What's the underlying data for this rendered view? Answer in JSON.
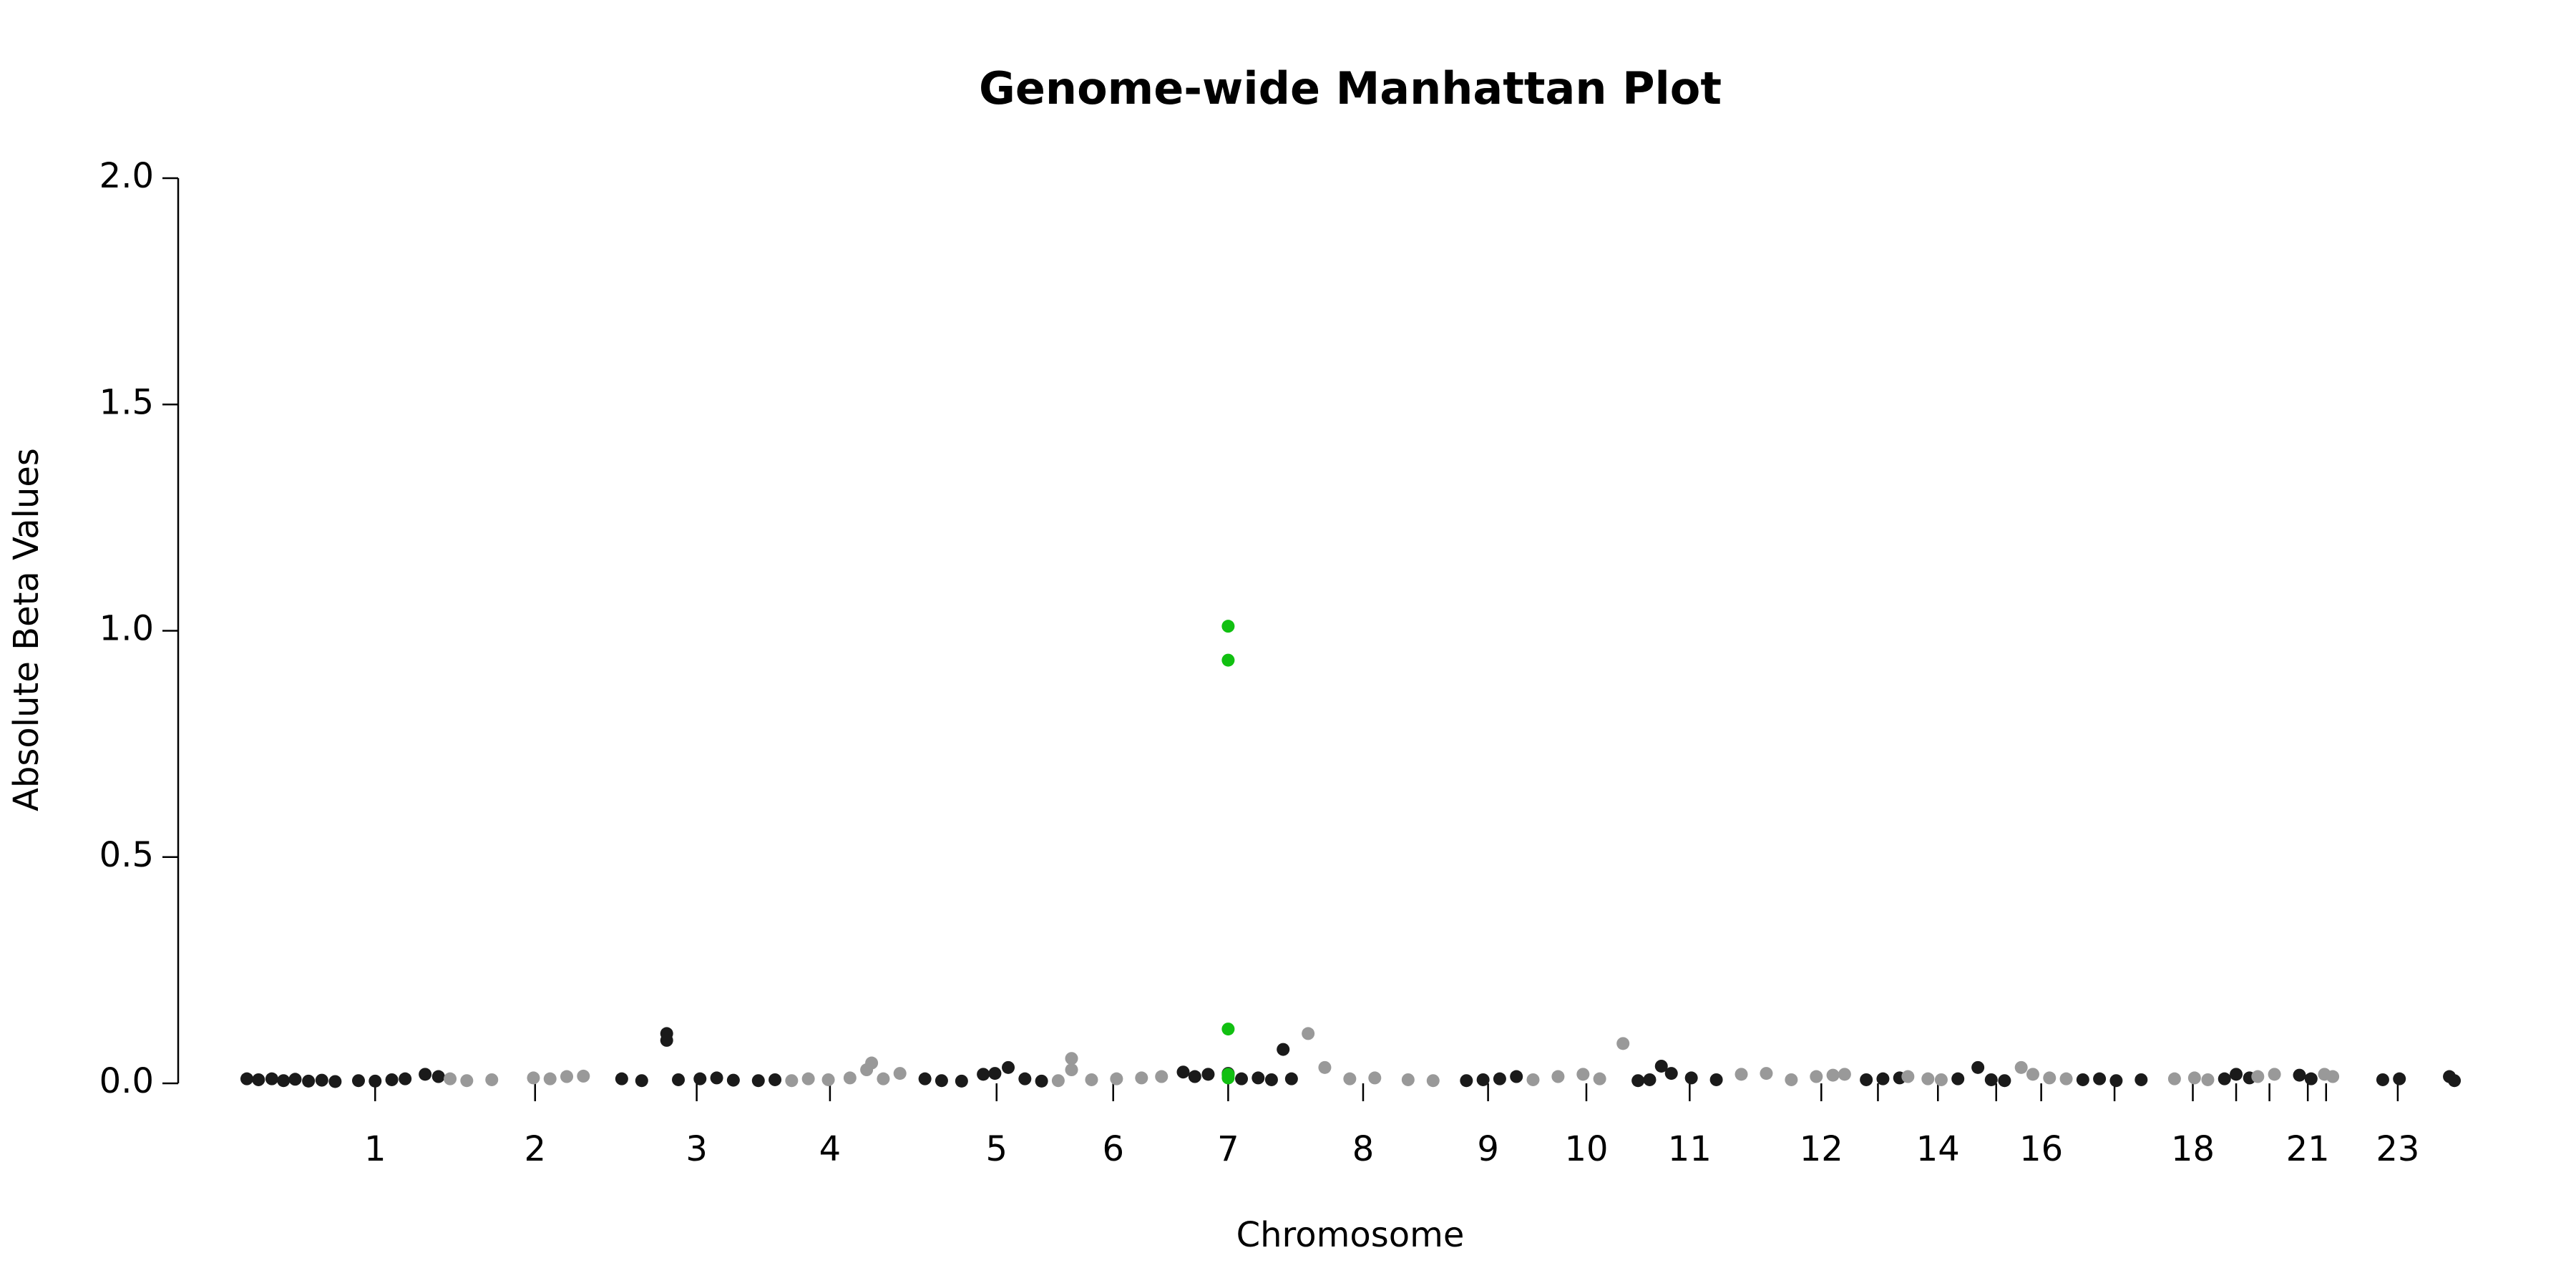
{
  "chart_data": {
    "type": "scatter",
    "title": "Genome-wide Manhattan Plot",
    "x_label": "Chromosome",
    "y_label": "Absolute Beta Values",
    "xlim": [
      0,
      1340
    ],
    "ylim": [
      0,
      2
    ],
    "yticks": [
      {
        "value": 0,
        "label": "0.0"
      },
      {
        "value": 0.5,
        "label": "0.5"
      },
      {
        "value": 1,
        "label": "1.0"
      },
      {
        "value": 1.5,
        "label": "1.5"
      },
      {
        "value": 2,
        "label": "2.0"
      }
    ],
    "xticks": [
      {
        "value": 80,
        "label": "1"
      },
      {
        "value": 176,
        "label": "2"
      },
      {
        "value": 273,
        "label": "3"
      },
      {
        "value": 353,
        "label": "4"
      },
      {
        "value": 453,
        "label": "5"
      },
      {
        "value": 523,
        "label": "6"
      },
      {
        "value": 592,
        "label": "7"
      },
      {
        "value": 673,
        "label": "8"
      },
      {
        "value": 748,
        "label": "9"
      },
      {
        "value": 807,
        "label": "10"
      },
      {
        "value": 869,
        "label": "11"
      },
      {
        "value": 948,
        "label": "12"
      },
      {
        "value": 982,
        "label": null
      },
      {
        "value": 1018,
        "label": "14"
      },
      {
        "value": 1053,
        "label": null
      },
      {
        "value": 1080,
        "label": "16"
      },
      {
        "value": 1124,
        "label": null
      },
      {
        "value": 1171,
        "label": "18"
      },
      {
        "value": 1197,
        "label": null
      },
      {
        "value": 1217,
        "label": null
      },
      {
        "value": 1240,
        "label": "21"
      },
      {
        "value": 1251,
        "label": null
      },
      {
        "value": 1294,
        "label": "23"
      }
    ],
    "series": [
      {
        "color": "#1a1a1a",
        "x": [
          3,
          10,
          18,
          25,
          32,
          40,
          48,
          56,
          70,
          80,
          90,
          98,
          110,
          118,
          228,
          240,
          255,
          255,
          262,
          275,
          285,
          295,
          310,
          320,
          410,
          420,
          432,
          445,
          452,
          460,
          470,
          480,
          565,
          572,
          580,
          592,
          600,
          610,
          618,
          625,
          630,
          735,
          745,
          755,
          765,
          838,
          845,
          852,
          858,
          870,
          885,
          975,
          985,
          995,
          1030,
          1042,
          1050,
          1058,
          1105,
          1115,
          1125,
          1140,
          1190,
          1197,
          1205,
          1235,
          1242,
          1285,
          1295,
          1325,
          1328
        ],
        "values": [
          0.01,
          0.008,
          0.01,
          0.006,
          0.009,
          0.005,
          0.007,
          0.004,
          0.006,
          0.005,
          0.008,
          0.01,
          0.02,
          0.015,
          0.01,
          0.006,
          0.11,
          0.095,
          0.008,
          0.01,
          0.012,
          0.007,
          0.006,
          0.008,
          0.01,
          0.006,
          0.005,
          0.02,
          0.022,
          0.035,
          0.01,
          0.005,
          0.025,
          0.015,
          0.02,
          0.022,
          0.01,
          0.012,
          0.008,
          0.075,
          0.01,
          0.006,
          0.008,
          0.01,
          0.015,
          0.006,
          0.008,
          0.038,
          0.022,
          0.012,
          0.008,
          0.008,
          0.01,
          0.012,
          0.01,
          0.035,
          0.008,
          0.006,
          0.008,
          0.01,
          0.006,
          0.008,
          0.01,
          0.02,
          0.012,
          0.018,
          0.01,
          0.008,
          0.01,
          0.015,
          0.006
        ]
      },
      {
        "color": "#999999",
        "x": [
          125,
          135,
          150,
          175,
          185,
          195,
          205,
          330,
          340,
          352,
          365,
          375,
          378,
          385,
          395,
          490,
          498,
          498,
          510,
          525,
          540,
          552,
          640,
          650,
          665,
          680,
          700,
          715,
          775,
          790,
          805,
          815,
          829,
          900,
          915,
          930,
          945,
          955,
          962,
          1000,
          1012,
          1020,
          1068,
          1075,
          1085,
          1095,
          1160,
          1172,
          1180,
          1210,
          1220,
          1250,
          1255
        ],
        "values": [
          0.01,
          0.006,
          0.008,
          0.012,
          0.01,
          0.015,
          0.016,
          0.006,
          0.01,
          0.008,
          0.012,
          0.03,
          0.045,
          0.01,
          0.022,
          0.006,
          0.055,
          0.03,
          0.008,
          0.01,
          0.012,
          0.015,
          0.11,
          0.035,
          0.01,
          0.012,
          0.008,
          0.006,
          0.008,
          0.015,
          0.02,
          0.01,
          0.088,
          0.02,
          0.022,
          0.008,
          0.015,
          0.018,
          0.02,
          0.015,
          0.01,
          0.008,
          0.035,
          0.02,
          0.012,
          0.01,
          0.01,
          0.012,
          0.008,
          0.015,
          0.02,
          0.02,
          0.015
        ]
      },
      {
        "color": "#11c011",
        "x": [
          592,
          592,
          592,
          592,
          592,
          592
        ],
        "values": [
          1.01,
          0.935,
          0.12,
          0.018,
          0.012,
          0.02
        ]
      }
    ]
  }
}
